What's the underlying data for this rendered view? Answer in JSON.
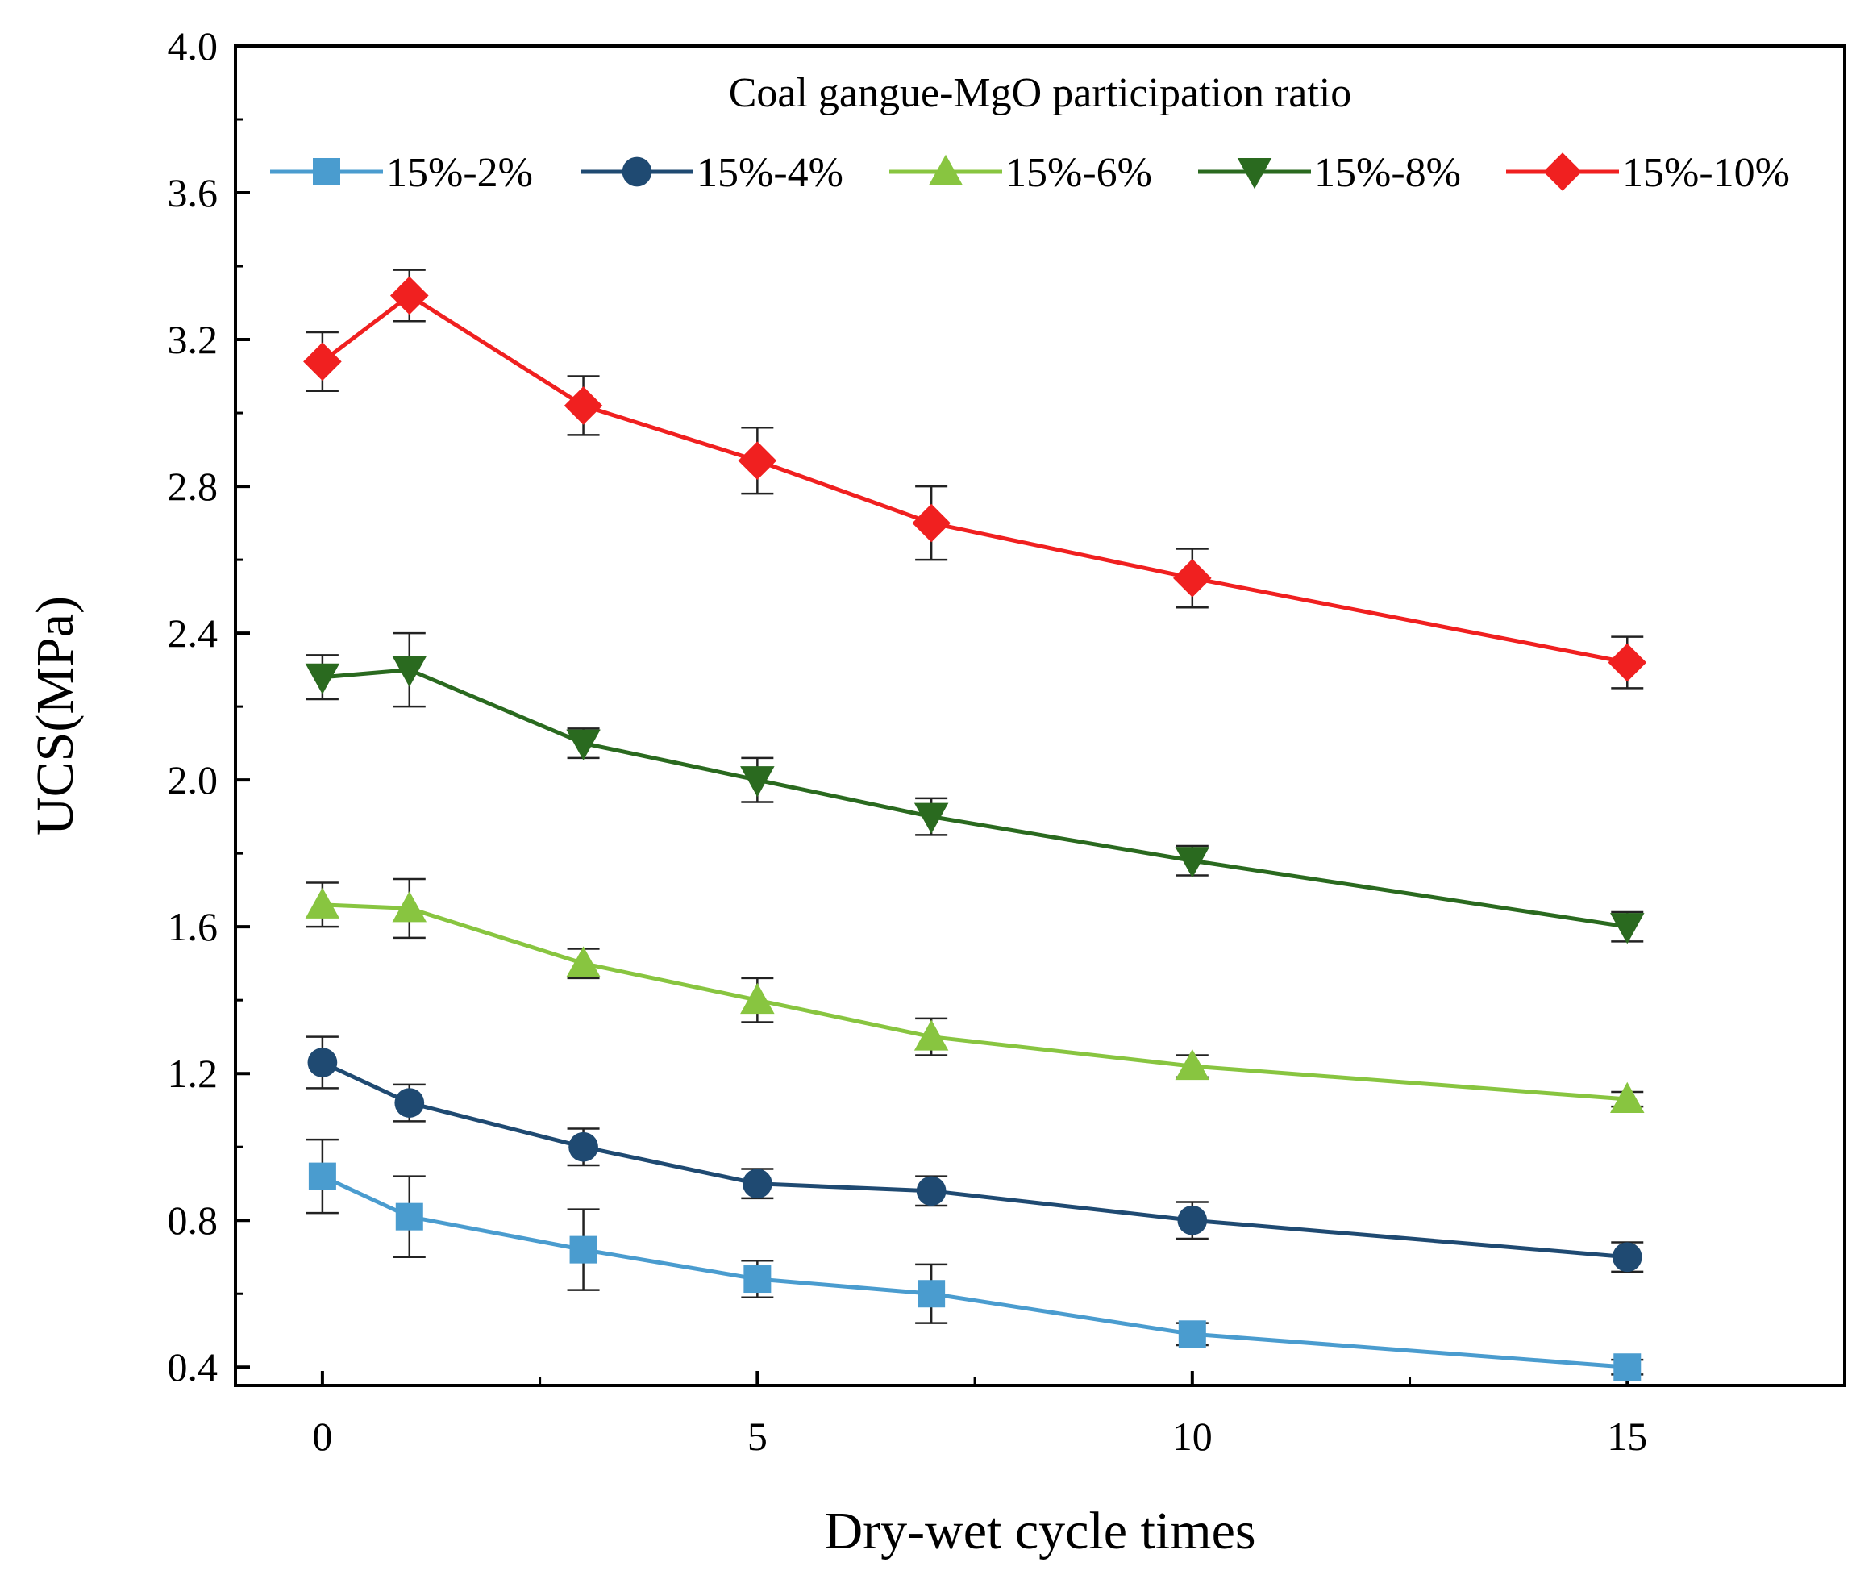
{
  "chart_data": {
    "type": "line",
    "title": "",
    "xlabel": "Dry-wet cycle times",
    "ylabel": "UCS(MPa)",
    "xlim": [
      -1,
      17.5
    ],
    "ylim": [
      0.35,
      4.0
    ],
    "xticks": [
      0,
      5,
      10,
      15
    ],
    "xtick_labels": [
      "0",
      "5",
      "10",
      "15"
    ],
    "yticks": [
      0.4,
      0.8,
      1.2,
      1.6,
      2.0,
      2.4,
      2.8,
      3.2,
      3.6,
      4.0
    ],
    "ytick_labels": [
      "0.4",
      "0.8",
      "1.2",
      "1.6",
      "2.0",
      "2.4",
      "2.8",
      "3.2",
      "3.6",
      "4.0"
    ],
    "legend_title": "Coal gangue-MgO participation ratio",
    "legend_position": "top",
    "x": [
      0,
      1,
      3,
      5,
      7,
      10,
      15
    ],
    "series": [
      {
        "name": "15%-2%",
        "color": "#4a9ccf",
        "marker": "square",
        "values": [
          0.92,
          0.81,
          0.72,
          0.64,
          0.6,
          0.49,
          0.4
        ],
        "errors": [
          0.1,
          0.11,
          0.11,
          0.05,
          0.08,
          0.03,
          0.02
        ]
      },
      {
        "name": "15%-4%",
        "color": "#1f4a72",
        "marker": "circle",
        "values": [
          1.23,
          1.12,
          1.0,
          0.9,
          0.88,
          0.8,
          0.7
        ],
        "errors": [
          0.07,
          0.05,
          0.05,
          0.04,
          0.04,
          0.05,
          0.04
        ]
      },
      {
        "name": "15%-6%",
        "color": "#88c540",
        "marker": "triangle-up",
        "values": [
          1.66,
          1.65,
          1.5,
          1.4,
          1.3,
          1.22,
          1.13
        ],
        "errors": [
          0.06,
          0.08,
          0.04,
          0.06,
          0.05,
          0.03,
          0.02
        ]
      },
      {
        "name": "15%-8%",
        "color": "#2a6a1f",
        "marker": "triangle-down",
        "values": [
          2.28,
          2.3,
          2.1,
          2.0,
          1.9,
          1.78,
          1.6
        ],
        "errors": [
          0.06,
          0.1,
          0.04,
          0.06,
          0.05,
          0.04,
          0.04
        ]
      },
      {
        "name": "15%-10%",
        "color": "#f02020",
        "marker": "diamond",
        "values": [
          3.14,
          3.32,
          3.02,
          2.87,
          2.7,
          2.55,
          2.32
        ],
        "errors": [
          0.08,
          0.07,
          0.08,
          0.09,
          0.1,
          0.08,
          0.07
        ]
      }
    ]
  }
}
